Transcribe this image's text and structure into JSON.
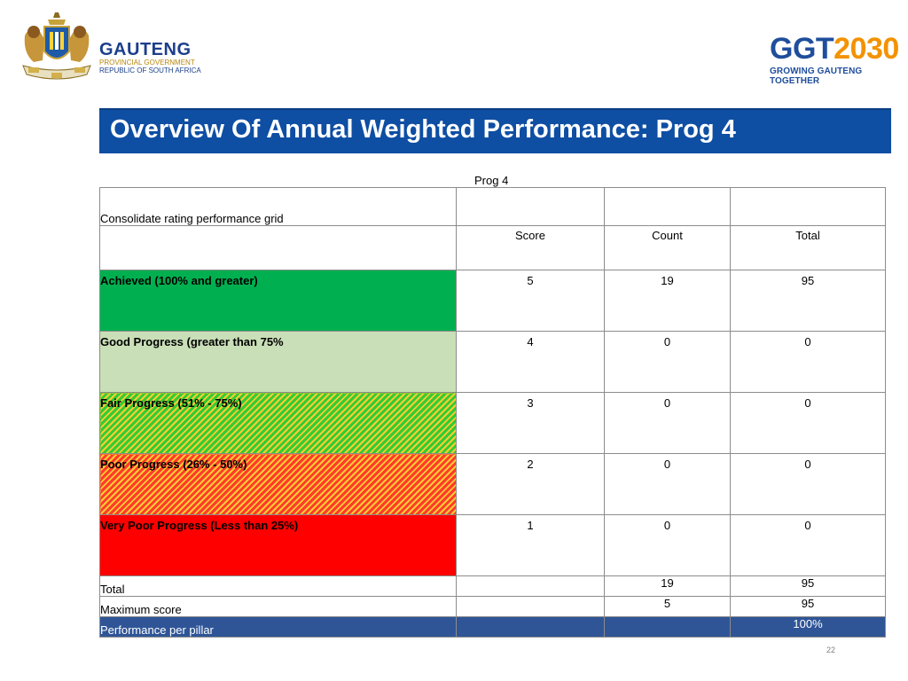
{
  "header": {
    "org_name": "GAUTENG",
    "org_sub1": "PROVINCIAL GOVERNMENT",
    "org_sub2": "REPUBLIC OF SOUTH AFRICA",
    "brand_ggt": "GGT",
    "brand_year": "2030",
    "brand_tagline": "GROWING GAUTENG TOGETHER"
  },
  "title": "Overview Of Annual Weighted Performance: Prog 4",
  "table": {
    "caption": "Prog 4",
    "grid_label": "Consolidate rating performance grid",
    "columns": [
      "Score",
      "Count",
      "Total"
    ],
    "rows": [
      {
        "label": "Achieved (100%  and greater)",
        "score": "5",
        "count": "19",
        "total": "95"
      },
      {
        "label": "Good Progress (greater than 75%",
        "score": "4",
        "count": "0",
        "total": "0"
      },
      {
        "label": "Fair Progress (51% - 75%)",
        "score": "3",
        "count": "0",
        "total": "0"
      },
      {
        "label": "Poor Progress (26% - 50%)",
        "score": "2",
        "count": "0",
        "total": "0"
      },
      {
        "label": "Very Poor Progress (Less than 25%)",
        "score": "1",
        "count": "0",
        "total": "0"
      }
    ],
    "total_row": {
      "label": "Total",
      "count": "19",
      "total": "95"
    },
    "max_row": {
      "label": "Maximum score",
      "count": "5",
      "total": "95"
    },
    "perf_row": {
      "label": "Performance per pillar",
      "total": "100%"
    }
  },
  "colors": {
    "title_bar": "#0e4ea3",
    "achieved": "#00b050",
    "good": "#c9dfb7",
    "very_poor": "#ff0000",
    "perf_row": "#2f5597"
  },
  "page_number": "22"
}
